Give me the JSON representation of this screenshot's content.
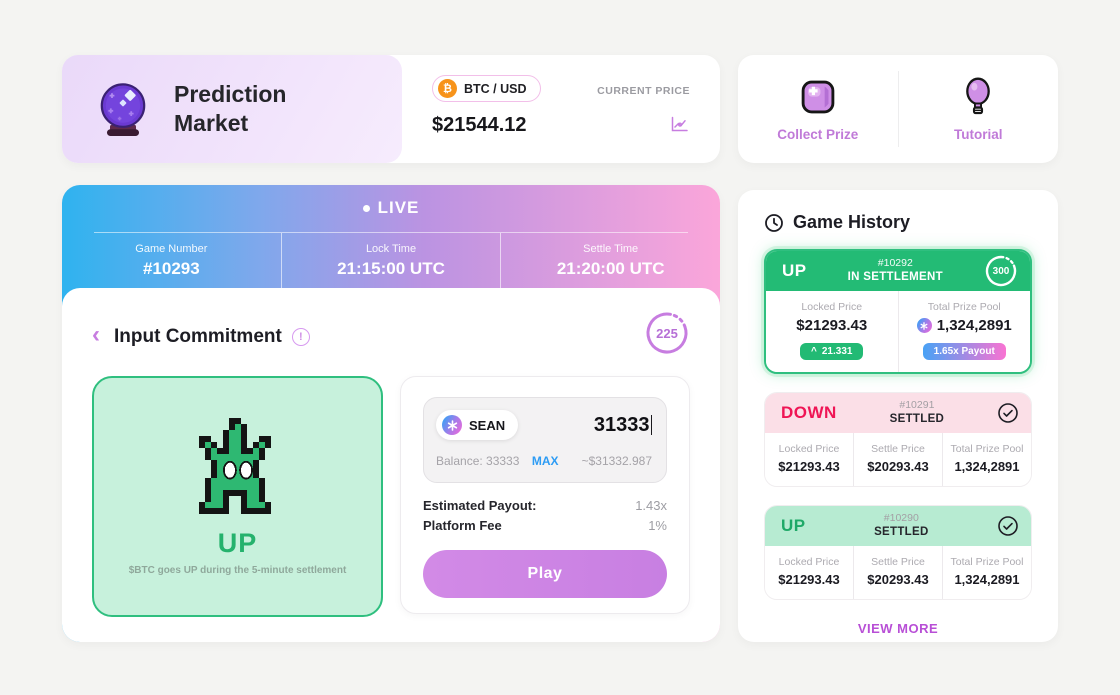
{
  "header": {
    "title_line1": "Prediction",
    "title_line2": "Market",
    "pair": "BTC / USD",
    "price": "$21544.12",
    "price_label": "CURRENT PRICE"
  },
  "quick_actions": {
    "collect_prize": "Collect Prize",
    "tutorial": "Tutorial"
  },
  "live": {
    "status_label": "LIVE",
    "game_number_label": "Game Number",
    "game_number": "#10293",
    "lock_time_label": "Lock Time",
    "lock_time": "21:15:00 UTC",
    "settle_time_label": "Settle Time",
    "settle_time": "21:20:00 UTC"
  },
  "commitment": {
    "title": "Input Commitment",
    "countdown": "225",
    "up": {
      "label": "UP",
      "description": "$BTC goes UP during the 5-minute settlement"
    },
    "form": {
      "token": "SEAN",
      "amount": "31333",
      "balance": "Balance: 33333",
      "max": "MAX",
      "usd_estimate": "~$31332.987",
      "payout_label": "Estimated Payout:",
      "payout_value": "1.43x",
      "fee_label": "Platform Fee",
      "fee_value": "1%",
      "play": "Play"
    }
  },
  "history": {
    "title": "Game History",
    "view_more": "VIEW MORE",
    "cards": [
      {
        "direction": "UP",
        "game_id": "#10292",
        "status": "IN SETTLEMENT",
        "countdown": "300",
        "locked_price_label": "Locked Price",
        "locked_price": "$21293.43",
        "pool_label": "Total Prize Pool",
        "pool": "1,324,2891",
        "change_value": "21.331",
        "payout_badge": "1.65x Payout"
      },
      {
        "direction": "DOWN",
        "game_id": "#10291",
        "status": "SETTLED",
        "locked_price_label": "Locked Price",
        "locked_price": "$21293.43",
        "settle_price_label": "Settle Price",
        "settle_price": "$20293.43",
        "pool_label": "Total Prize Pool",
        "pool": "1,324,2891"
      },
      {
        "direction": "UP",
        "game_id": "#10290",
        "status": "SETTLED",
        "locked_price_label": "Locked Price",
        "locked_price": "$21293.43",
        "settle_price_label": "Settle Price",
        "settle_price": "$20293.43",
        "pool_label": "Total Prize Pool",
        "pool": "1,324,2891"
      }
    ]
  },
  "icons": {
    "btc": "₿",
    "back": "‹",
    "info": "!",
    "caret_up": "^"
  },
  "colors": {
    "accent_purple": "#c77de0",
    "green": "#23bb75",
    "down_red": "#ef1555",
    "max_blue": "#2d9cf4",
    "banner_gradient_left": "#2fb3ef",
    "banner_gradient_right": "#fba6da",
    "bitcoin_orange": "#f7931a"
  }
}
